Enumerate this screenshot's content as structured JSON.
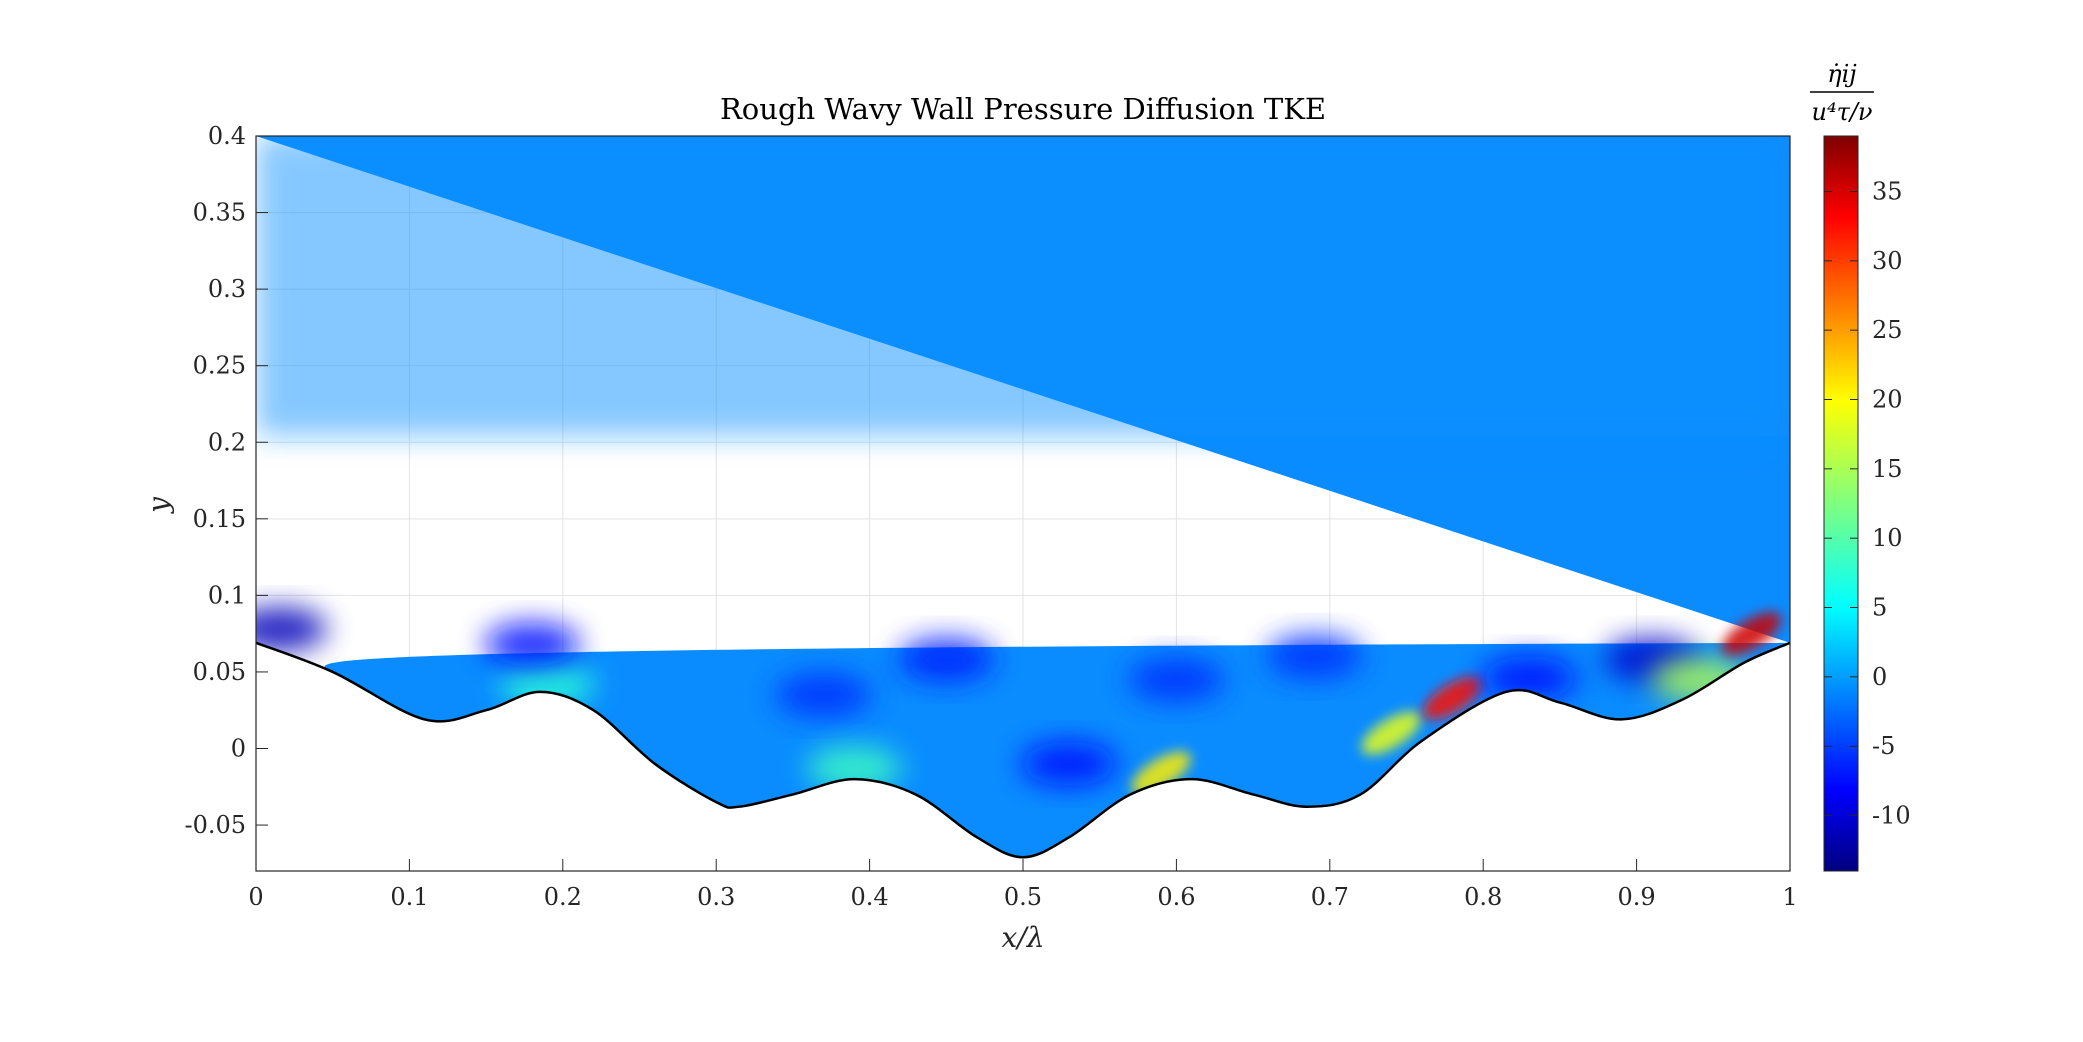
{
  "chart_data": {
    "type": "heatmap",
    "title": "Rough Wavy Wall Pressure Diffusion TKE",
    "xlabel": "x/λ",
    "ylabel": "y",
    "xlim": [
      0,
      1
    ],
    "ylim": [
      -0.08,
      0.4
    ],
    "xticks": [
      0,
      0.1,
      0.2,
      0.3,
      0.4,
      0.5,
      0.6,
      0.7,
      0.8,
      0.9,
      1
    ],
    "xtick_labels": [
      "0",
      "0.1",
      "0.2",
      "0.3",
      "0.4",
      "0.5",
      "0.6",
      "0.7",
      "0.8",
      "0.9",
      "1"
    ],
    "yticks": [
      -0.05,
      0,
      0.05,
      0.1,
      0.15,
      0.2,
      0.25,
      0.3,
      0.35,
      0.4
    ],
    "ytick_labels": [
      "-0.05",
      "0",
      "0.05",
      "0.1",
      "0.15",
      "0.2",
      "0.25",
      "0.3",
      "0.35",
      "0.4"
    ],
    "grid": true,
    "colormap": "jet",
    "colorbar": {
      "label_numerator": "η̇ij",
      "label_denominator": "u⁴τ/ν",
      "clim": [
        -14,
        39
      ],
      "ticks": [
        -10,
        -5,
        0,
        5,
        10,
        15,
        20,
        25,
        30,
        35
      ],
      "tick_labels": [
        "-10",
        "-5",
        "0",
        "5",
        "10",
        "15",
        "20",
        "25",
        "30",
        "35"
      ]
    },
    "wall_profile": {
      "x": [
        0,
        0.05,
        0.11,
        0.15,
        0.185,
        0.22,
        0.26,
        0.3,
        0.315,
        0.35,
        0.39,
        0.43,
        0.47,
        0.5,
        0.53,
        0.57,
        0.61,
        0.65,
        0.685,
        0.72,
        0.76,
        0.815,
        0.85,
        0.89,
        0.93,
        0.97,
        1.0
      ],
      "y": [
        0.069,
        0.05,
        0.019,
        0.025,
        0.037,
        0.025,
        -0.01,
        -0.035,
        -0.038,
        -0.03,
        -0.02,
        -0.03,
        -0.058,
        -0.071,
        -0.058,
        -0.03,
        -0.02,
        -0.03,
        -0.038,
        -0.03,
        0.005,
        0.037,
        0.03,
        0.019,
        0.032,
        0.056,
        0.069
      ]
    },
    "features": [
      {
        "x": 0.015,
        "y": 0.078,
        "value": -11
      },
      {
        "x": 0.19,
        "y": 0.042,
        "value": 8
      },
      {
        "x": 0.18,
        "y": 0.068,
        "value": -7
      },
      {
        "x": 0.37,
        "y": 0.035,
        "value": -5
      },
      {
        "x": 0.39,
        "y": -0.013,
        "value": 9
      },
      {
        "x": 0.45,
        "y": 0.058,
        "value": -6
      },
      {
        "x": 0.53,
        "y": -0.01,
        "value": -7
      },
      {
        "x": 0.59,
        "y": -0.016,
        "value": 20
      },
      {
        "x": 0.6,
        "y": 0.045,
        "value": -5
      },
      {
        "x": 0.69,
        "y": 0.06,
        "value": -5
      },
      {
        "x": 0.74,
        "y": 0.01,
        "value": 18
      },
      {
        "x": 0.78,
        "y": 0.033,
        "value": 32
      },
      {
        "x": 0.83,
        "y": 0.046,
        "value": -7
      },
      {
        "x": 0.91,
        "y": 0.058,
        "value": -10
      },
      {
        "x": 0.94,
        "y": 0.045,
        "value": 15
      },
      {
        "x": 0.975,
        "y": 0.075,
        "value": 35
      }
    ]
  }
}
